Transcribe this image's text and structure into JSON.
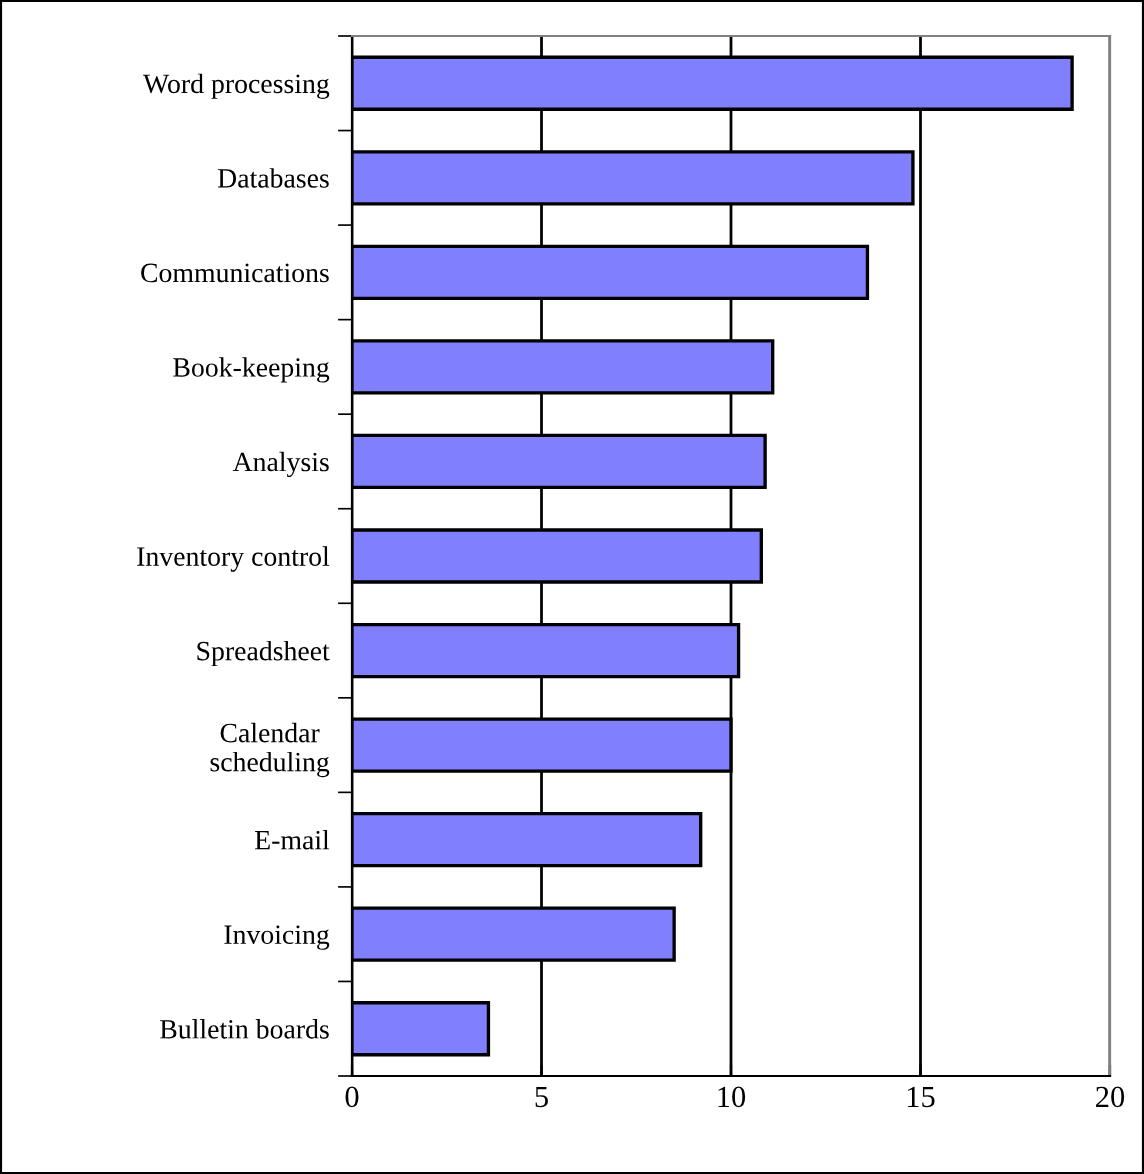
{
  "chart_data": {
    "type": "bar",
    "orientation": "horizontal",
    "categories": [
      "Word processing",
      "Databases",
      "Communications",
      "Book-keeping",
      "Analysis",
      "Inventory control",
      "Spreadsheet",
      "Calendar\nscheduling",
      "E-mail",
      "Invoicing",
      "Bulletin boards"
    ],
    "values": [
      19.0,
      14.8,
      13.6,
      11.1,
      10.9,
      10.8,
      10.2,
      10.0,
      9.2,
      8.5,
      3.6
    ],
    "color": "#8080ff",
    "xlim": [
      0,
      20
    ],
    "xticks": [
      0,
      5,
      10,
      15,
      20
    ],
    "grid": "x"
  }
}
